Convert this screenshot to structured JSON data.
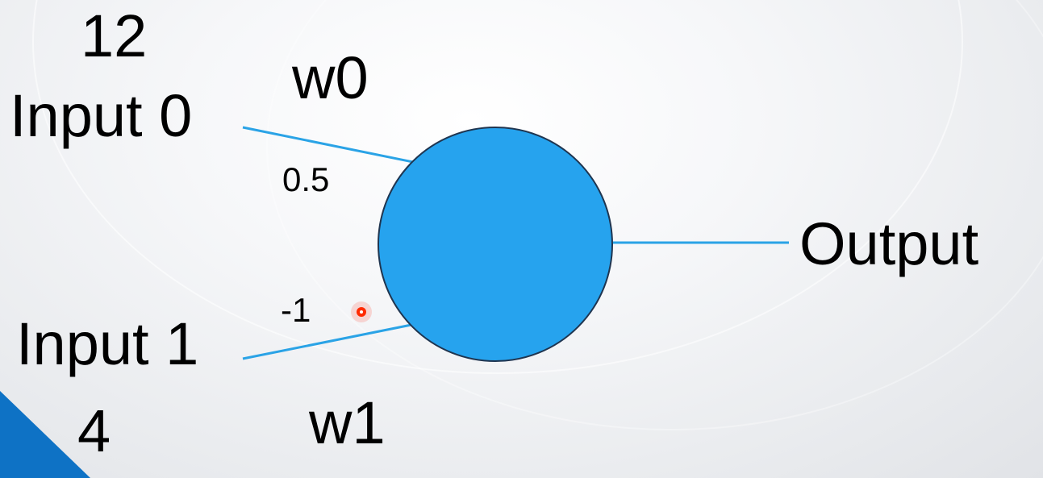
{
  "diagram": {
    "input0": {
      "label": "Input 0",
      "value": "12"
    },
    "input1": {
      "label": "Input 1",
      "value": "4"
    },
    "weight0": {
      "name": "w0",
      "value": "0.5"
    },
    "weight1": {
      "name": "w1",
      "value": "-1"
    },
    "output": {
      "label": "Output"
    },
    "neuron": {
      "color": "#26a3ee",
      "stroke": "#1f3550"
    },
    "connection_color": "#2aa3e6",
    "accent_triangle_color": "#0e72c5",
    "pointer_color": "#ff2a00"
  }
}
